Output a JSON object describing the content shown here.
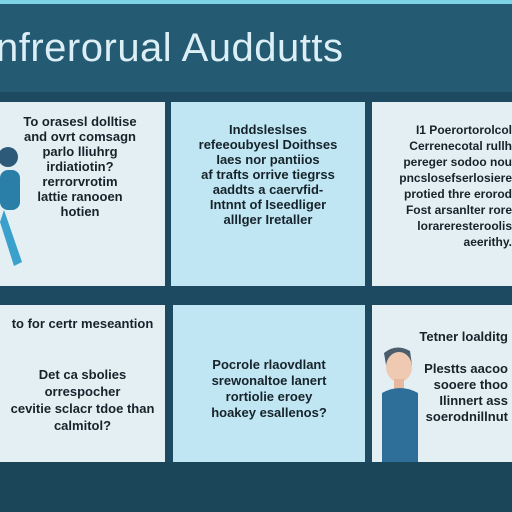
{
  "header": {
    "title": "nfrerorual Auddutts"
  },
  "panels": [
    {
      "text": "To orasesl dolltise\nand ovrt comsagn\nparlo lliuhrg\nirdiatiotin?\nrerrorvrotim\nlattie ranooen\nhotien"
    },
    {
      "text": "Inddsleslses\nrefeeoubyesl Doithses\nIaes nor pantiios\naf trafts orrive tiegrss\naaddts a caervfid-\nIntnnt of Iseedliger\nalllger Iretaller"
    },
    {
      "text": "I1 Poerortorolcol\nCerrenecotal rullh\npereger sodoo nou\npncslosefserlosiere\nprotied thre erorod\nFost arsanlter rore\nlorareresteroolis\naeerithy."
    },
    {
      "text": "to for certr meseantion\n\n\nDet ca sbolies\norrespocher\ncevitie sclacr tdoe than\ncalmitol?"
    },
    {
      "text": "Pocrole rlaovdlant\nsrewonaltoe lanert\nrortiolie eroey\nhoakey esallenos?"
    },
    {
      "text": "Tetner loalditg\n\nPlestts aacoo\nsooere thoo\nIlinnert ass\nsoerodnillnut"
    }
  ]
}
